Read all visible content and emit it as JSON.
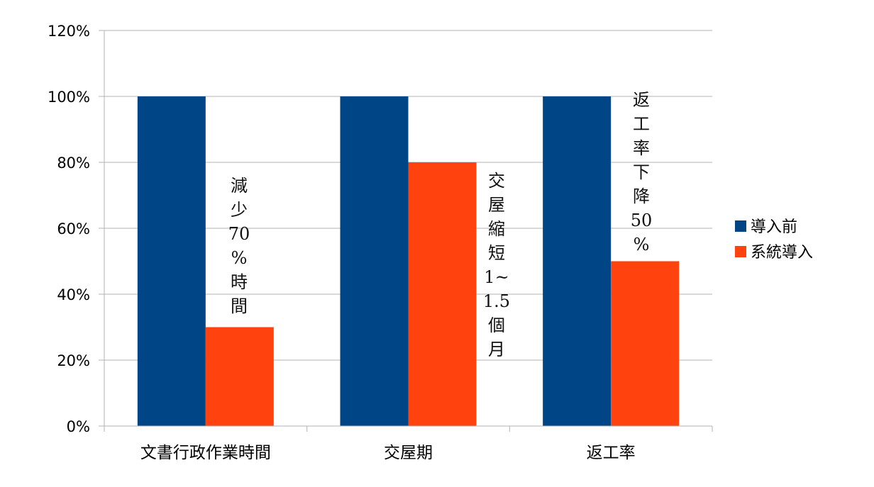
{
  "chart_data": {
    "type": "bar",
    "categories": [
      "文書行政作業時間",
      "交屋期",
      "返工率"
    ],
    "series": [
      {
        "name": "導入前",
        "values": [
          100,
          100,
          100
        ]
      },
      {
        "name": "系統導入",
        "values": [
          30,
          80,
          50
        ]
      }
    ],
    "ylim": [
      0,
      120
    ],
    "yticks": [
      "0%",
      "20%",
      "40%",
      "60%",
      "80%",
      "100%",
      "120%"
    ],
    "grid": true,
    "legend_position": "right",
    "annotations": [
      {
        "category": "文書行政作業時間",
        "text": "減少70%時間"
      },
      {
        "category": "交屋期",
        "text": "交屋縮短1~1.5個月"
      },
      {
        "category": "返工率",
        "text": "返工率下降50%"
      }
    ],
    "colors": {
      "導入前": "#004586",
      "系統導入": "#ff420e",
      "grid": "#b3b3b3"
    }
  }
}
